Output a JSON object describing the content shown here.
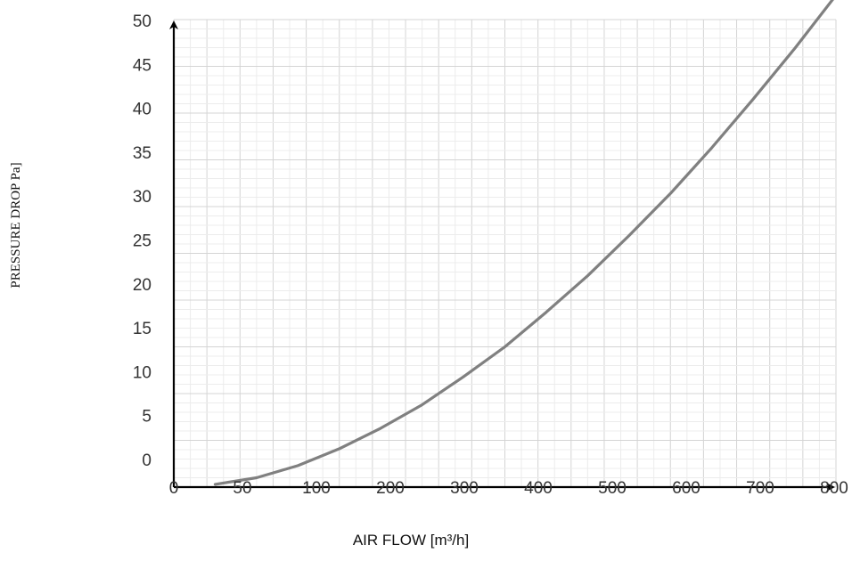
{
  "chart_data": {
    "type": "line",
    "title": "",
    "xlabel": "AIR FLOW [m³/h]",
    "ylabel": "PRESSURE DROP Pa]",
    "x_ticks": [
      "0",
      "50",
      "100",
      "200",
      "300",
      "400",
      "500",
      "600",
      "700",
      "800"
    ],
    "y_ticks": [
      "0",
      "5",
      "10",
      "15",
      "20",
      "25",
      "30",
      "35",
      "40",
      "45",
      "50"
    ],
    "xlim": [
      0,
      800
    ],
    "ylim": [
      0,
      50
    ],
    "grid": true,
    "legend": "none",
    "line_color": "#808080",
    "series": [
      {
        "x": [
          50,
          100,
          150,
          200,
          250,
          300,
          350,
          400,
          450,
          500,
          550,
          600,
          650,
          700,
          750,
          800
        ],
        "y": [
          0.3,
          1.0,
          2.3,
          4.1,
          6.3,
          8.8,
          11.8,
          15.0,
          18.7,
          22.6,
          26.9,
          31.4,
          36.3,
          41.5,
          46.9,
          52.6
        ]
      }
    ]
  }
}
